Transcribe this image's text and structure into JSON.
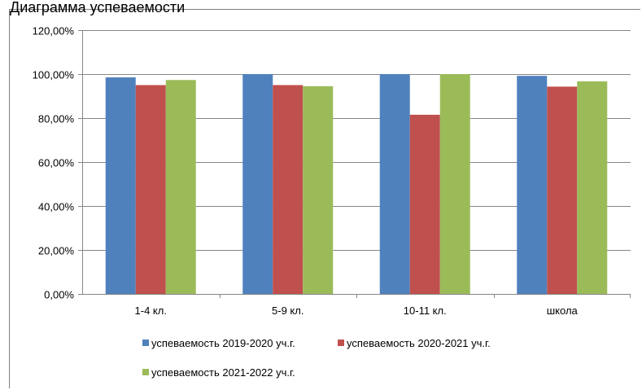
{
  "top_text": "Диаграмма успеваемости",
  "colors": {
    "series": [
      "#4f81bd",
      "#c0504d",
      "#9bbb59"
    ],
    "grid": "#868686",
    "axis": "#868686",
    "text": "#000000"
  },
  "chart_data": {
    "type": "bar",
    "title": "",
    "xlabel": "",
    "ylabel": "",
    "categories": [
      "1-4 кл.",
      "5-9 кл.",
      "10-11 кл.",
      "школа"
    ],
    "series": [
      {
        "name": "успеваемость 2019-2020 уч.г.",
        "values": [
          0.985,
          1.0,
          1.0,
          0.992
        ]
      },
      {
        "name": "успеваемость 2020-2021 уч.г.",
        "values": [
          0.95,
          0.95,
          0.815,
          0.943
        ]
      },
      {
        "name": "успеваемость 2021-2022 уч.г.",
        "values": [
          0.973,
          0.945,
          1.0,
          0.967
        ]
      }
    ],
    "ylim": [
      0,
      1.2
    ],
    "yticks": [
      0,
      0.2,
      0.4,
      0.6,
      0.8,
      1.0,
      1.2
    ],
    "ytick_labels": [
      "0,00%",
      "20,00%",
      "40,00%",
      "60,00%",
      "80,00%",
      "100,00%",
      "120,00%"
    ],
    "grid": true,
    "legend_position": "bottom"
  }
}
